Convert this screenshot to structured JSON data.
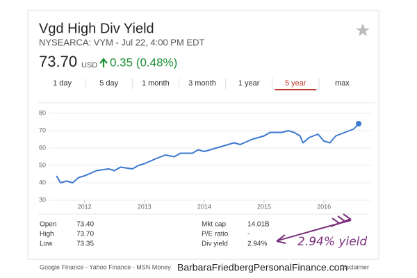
{
  "header": {
    "title": "Vgd High Div Yield",
    "subtitle": "NYSEARCA: VYM - Jul 22, 4:00 PM EDT",
    "price": "73.70",
    "currency": "USD",
    "change": "0.35 (0.48%)"
  },
  "tabs": [
    "1 day",
    "5 day",
    "1 month",
    "3 month",
    "1 year",
    "5 year",
    "max"
  ],
  "active_tab": "5 year",
  "chart_data": {
    "type": "line",
    "color": "#3b78d0",
    "x": [
      2011.53,
      2011.6,
      2011.7,
      2011.8,
      2011.9,
      2012.0,
      2012.2,
      2012.4,
      2012.5,
      2012.6,
      2012.8,
      2012.9,
      2013.0,
      2013.2,
      2013.35,
      2013.5,
      2013.6,
      2013.8,
      2013.9,
      2014.0,
      2014.1,
      2014.3,
      2014.5,
      2014.6,
      2014.8,
      2014.9,
      2015.0,
      2015.1,
      2015.3,
      2015.4,
      2015.5,
      2015.6,
      2015.65,
      2015.75,
      2015.9,
      2016.0,
      2016.1,
      2016.2,
      2016.35,
      2016.5,
      2016.58
    ],
    "values": [
      44,
      40,
      41,
      40,
      43,
      44,
      47,
      48,
      47,
      49,
      48,
      50,
      51,
      54,
      56,
      55,
      57,
      57,
      59,
      58,
      59,
      61,
      63,
      62,
      65,
      66,
      67,
      69,
      69,
      70,
      69,
      67,
      63,
      66,
      68,
      64,
      63,
      67,
      69,
      71,
      74
    ],
    "xlim": [
      2011.4,
      2016.8
    ],
    "xticks": [
      2012,
      2013,
      2014,
      2015,
      2016
    ],
    "ylim": [
      30,
      80
    ],
    "yticks": [
      30,
      40,
      50,
      60,
      70,
      80
    ],
    "grid": true
  },
  "stats": [
    [
      {
        "label": "Open",
        "value": "73.40"
      },
      {
        "label": "High",
        "value": "73.70"
      },
      {
        "label": "Low",
        "value": "73.35"
      }
    ],
    [
      {
        "label": "Mkt cap",
        "value": "14.01B"
      },
      {
        "label": "P/E ratio",
        "value": "-"
      },
      {
        "label": "Div yield",
        "value": "2.94%"
      }
    ]
  ],
  "annotation": "2.94% yield",
  "footer": {
    "links": "Google Finance - Yahoo Finance - MSN Money",
    "site": "BarbaraFriedbergPersonalFinance.com",
    "disclaimer": "Disclaimer"
  }
}
